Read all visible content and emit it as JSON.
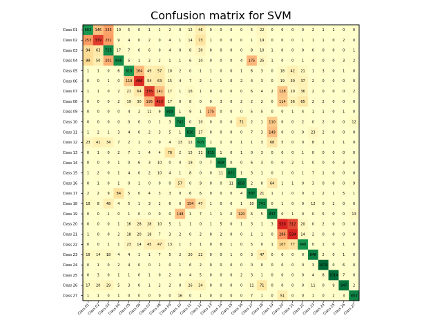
{
  "chart_data": {
    "type": "heatmap",
    "title": "Confusion matrix for SVM",
    "xlabel": "",
    "ylabel": "",
    "grid": false,
    "colormap": "RdYlGn_r",
    "color_stops": [
      "#006837",
      "#1a9850",
      "#66bd63",
      "#a6d96a",
      "#d9ef8b",
      "#ffffbf",
      "#fee08b",
      "#fdae61",
      "#f46d43",
      "#d73027",
      "#a50026"
    ],
    "x_labels": [
      "Class 01",
      "Class 02",
      "Class 03",
      "Class 04",
      "Class 05",
      "Class 06",
      "Class 07",
      "Class 08",
      "Class 09",
      "Class 10",
      "Class 11",
      "Class 12",
      "Class 13",
      "Class 14",
      "Class 15",
      "Class 16",
      "Class 17",
      "Class 18",
      "Class 19",
      "Class 20",
      "Class 21",
      "Class 22",
      "Class 23",
      "Class 24",
      "Class 25",
      "Class 26",
      "Class 27"
    ],
    "y_labels": [
      "Class 01",
      "Class 02",
      "Class 03",
      "Class 04",
      "Class 05",
      "Class 06",
      "Class 07",
      "Class 08",
      "Class 09",
      "Class 10",
      "Class 11",
      "Class 12",
      "Class 13",
      "Class 14",
      "Class 15",
      "Class 16",
      "Class 17",
      "Class 18",
      "Class 19",
      "Class 20",
      "Class 21",
      "Class 22",
      "Class 23",
      "Class 24",
      "Class 25",
      "Class 26",
      "Class 27"
    ],
    "matrix": [
      [
        603,
        146,
        235,
        10,
        5,
        0,
        1,
        1,
        2,
        0,
        12,
        46,
        0,
        0,
        0,
        0,
        5,
        22,
        0,
        0,
        0,
        0,
        2,
        1,
        1,
        0,
        0
      ],
      [
        253,
        379,
        251,
        9,
        4,
        0,
        2,
        0,
        4,
        1,
        14,
        73,
        1,
        0,
        0,
        0,
        1,
        19,
        0,
        0,
        0,
        1,
        1,
        1,
        0,
        2,
        0
      ],
      [
        94,
        63,
        725,
        17,
        7,
        0,
        6,
        0,
        4,
        0,
        8,
        30,
        0,
        0,
        0,
        0,
        8,
        10,
        1,
        0,
        0,
        0,
        0,
        0,
        0,
        0,
        1
      ],
      [
        99,
        50,
        201,
        695,
        5,
        1,
        2,
        2,
        1,
        1,
        6,
        10,
        0,
        0,
        0,
        4,
        175,
        25,
        1,
        0,
        0,
        1,
        4,
        0,
        0,
        3,
        2
      ],
      [
        1,
        1,
        0,
        6,
        610,
        164,
        49,
        57,
        10,
        2,
        0,
        1,
        1,
        0,
        0,
        1,
        6,
        3,
        0,
        18,
        42,
        21,
        1,
        3,
        0,
        1,
        0
      ],
      [
        0,
        0,
        1,
        0,
        119,
        486,
        54,
        63,
        15,
        4,
        7,
        2,
        1,
        1,
        0,
        2,
        4,
        3,
        0,
        19,
        30,
        37,
        2,
        0,
        0,
        0,
        0
      ],
      [
        1,
        1,
        0,
        2,
        21,
        64,
        376,
        141,
        17,
        1,
        16,
        1,
        0,
        0,
        0,
        0,
        6,
        4,
        2,
        128,
        20,
        36,
        2,
        0,
        0,
        0,
        2
      ],
      [
        0,
        0,
        0,
        2,
        19,
        30,
        195,
        413,
        17,
        0,
        8,
        0,
        0,
        3,
        0,
        2,
        2,
        2,
        0,
        114,
        36,
        65,
        2,
        2,
        0,
        0,
        0
      ],
      [
        0,
        0,
        0,
        0,
        4,
        2,
        11,
        9,
        803,
        1,
        9,
        1,
        175,
        0,
        0,
        0,
        5,
        5,
        0,
        0,
        1,
        4,
        1,
        1,
        0,
        1,
        0
      ],
      [
        0,
        0,
        0,
        0,
        0,
        0,
        0,
        1,
        3,
        742,
        0,
        10,
        0,
        0,
        0,
        71,
        2,
        1,
        110,
        0,
        0,
        2,
        0,
        2,
        0,
        0,
        12
      ],
      [
        1,
        2,
        1,
        3,
        4,
        0,
        2,
        3,
        5,
        1,
        820,
        17,
        0,
        0,
        0,
        0,
        7,
        3,
        149,
        0,
        0,
        0,
        23,
        2,
        0,
        0,
        0
      ],
      [
        23,
        41,
        34,
        7,
        2,
        1,
        0,
        0,
        4,
        13,
        12,
        603,
        1,
        1,
        0,
        1,
        1,
        3,
        68,
        5,
        0,
        0,
        8,
        1,
        1,
        1,
        0
      ],
      [
        0,
        1,
        0,
        2,
        7,
        1,
        4,
        4,
        78,
        2,
        15,
        11,
        815,
        1,
        0,
        1,
        0,
        3,
        0,
        0,
        0,
        1,
        0,
        0,
        0,
        0,
        0
      ],
      [
        0,
        0,
        0,
        1,
        0,
        6,
        3,
        10,
        0,
        0,
        19,
        0,
        7,
        818,
        0,
        0,
        6,
        3,
        0,
        0,
        2,
        1,
        0,
        0,
        0,
        3,
        0
      ],
      [
        1,
        2,
        0,
        1,
        4,
        0,
        2,
        10,
        4,
        1,
        8,
        0,
        0,
        11,
        821,
        1,
        3,
        1,
        0,
        1,
        0,
        1,
        7,
        1,
        0,
        0,
        0
      ],
      [
        0,
        1,
        0,
        1,
        0,
        1,
        0,
        0,
        0,
        57,
        0,
        9,
        0,
        0,
        11,
        850,
        2,
        0,
        64,
        1,
        1,
        0,
        3,
        0,
        0,
        0,
        9
      ],
      [
        2,
        2,
        9,
        84,
        5,
        0,
        4,
        3,
        3,
        0,
        6,
        6,
        0,
        0,
        0,
        4,
        807,
        21,
        1,
        1,
        0,
        0,
        1,
        2,
        1,
        5,
        1
      ],
      [
        18,
        8,
        48,
        4,
        5,
        1,
        3,
        2,
        6,
        0,
        154,
        47,
        1,
        0,
        0,
        1,
        10,
        741,
        0,
        1,
        0,
        0,
        12,
        0,
        2,
        0,
        0
      ],
      [
        0,
        0,
        1,
        0,
        1,
        0,
        0,
        0,
        0,
        148,
        1,
        7,
        1,
        1,
        0,
        120,
        6,
        5,
        837,
        0,
        1,
        0,
        0,
        5,
        0,
        0,
        13
      ],
      [
        0,
        0,
        0,
        1,
        16,
        28,
        28,
        10,
        5,
        1,
        1,
        0,
        1,
        5,
        0,
        1,
        3,
        1,
        3,
        520,
        312,
        20,
        0,
        2,
        0,
        0,
        0
      ],
      [
        1,
        0,
        0,
        2,
        18,
        20,
        18,
        7,
        3,
        2,
        0,
        2,
        0,
        2,
        0,
        0,
        1,
        1,
        0,
        286,
        534,
        14,
        2,
        0,
        0,
        0,
        0
      ],
      [
        0,
        0,
        1,
        1,
        23,
        14,
        45,
        47,
        13,
        1,
        3,
        1,
        0,
        6,
        1,
        0,
        5,
        0,
        1,
        107,
        77,
        646,
        0,
        1,
        0,
        1,
        0
      ],
      [
        18,
        14,
        18,
        4,
        4,
        1,
        1,
        7,
        5,
        2,
        20,
        22,
        0,
        0,
        1,
        0,
        3,
        47,
        0,
        0,
        0,
        0,
        848,
        2,
        0,
        1,
        0
      ],
      [
        0,
        1,
        0,
        2,
        4,
        0,
        0,
        1,
        0,
        1,
        6,
        2,
        0,
        0,
        0,
        0,
        0,
        0,
        0,
        0,
        0,
        0,
        3,
        1079,
        0,
        6,
        0
      ],
      [
        0,
        3,
        0,
        1,
        1,
        0,
        1,
        0,
        2,
        0,
        4,
        5,
        0,
        0,
        0,
        2,
        3,
        1,
        0,
        0,
        0,
        0,
        4,
        8,
        1014,
        7,
        0
      ],
      [
        17,
        20,
        29,
        5,
        3,
        0,
        1,
        2,
        2,
        0,
        26,
        34,
        0,
        0,
        0,
        0,
        11,
        71,
        0,
        0,
        0,
        0,
        11,
        0,
        9,
        947,
        2
      ],
      [
        1,
        1,
        0,
        1,
        0,
        0,
        0,
        0,
        0,
        16,
        0,
        1,
        0,
        0,
        0,
        0,
        7,
        1,
        0,
        51,
        0,
        0,
        1,
        0,
        2,
        3,
        803
      ]
    ]
  }
}
